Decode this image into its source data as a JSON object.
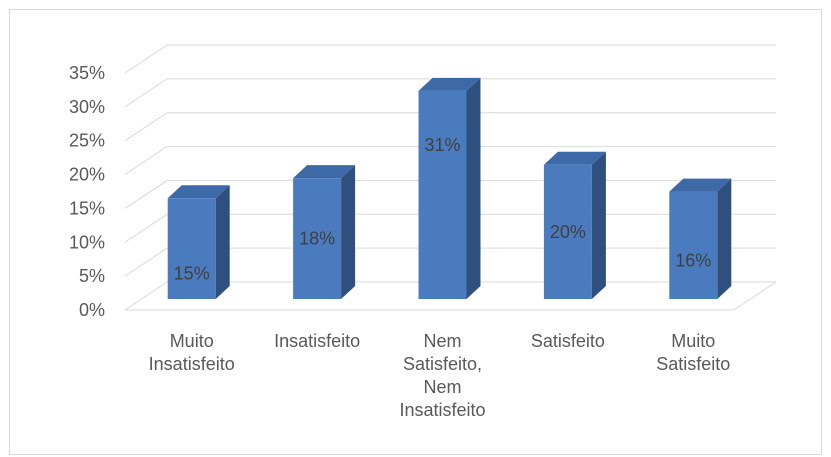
{
  "chart_data": {
    "type": "bar",
    "style": "3d-column",
    "title": "",
    "xlabel": "",
    "ylabel": "",
    "categories": [
      [
        "Muito",
        "Insatisfeito"
      ],
      [
        "Insatisfeito"
      ],
      [
        "Nem",
        "Satisfeito,",
        "Nem",
        "Insatisfeito"
      ],
      [
        "Satisfeito"
      ],
      [
        "Muito",
        "Satisfeito"
      ]
    ],
    "values": [
      15,
      18,
      31,
      20,
      16
    ],
    "data_labels": [
      "15%",
      "18%",
      "31%",
      "20%",
      "16%"
    ],
    "ylim": [
      0,
      35
    ],
    "yticks": [
      0,
      5,
      10,
      15,
      20,
      25,
      30,
      35
    ],
    "ytick_labels": [
      "0%",
      "5%",
      "10%",
      "15%",
      "20%",
      "25%",
      "30%",
      "35%"
    ],
    "grid": true,
    "legend": "none",
    "colors": {
      "bar_front": "#4a7bbe",
      "bar_side": "#2f4f7e",
      "bar_top": "#3d6aa6",
      "grid": "#d9d9d9",
      "axis_text": "#595959"
    }
  }
}
